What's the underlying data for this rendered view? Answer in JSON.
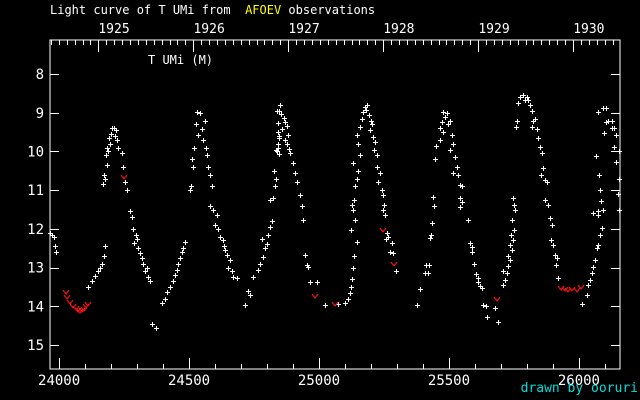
{
  "title": {
    "prefix": "Light curve of T UMi from  ",
    "highlight": "AFOEV",
    "suffix": " observations"
  },
  "series_label": "T UMi (M)",
  "credit": "drawn by ooruri",
  "colors": {
    "background": "#000000",
    "foreground": "#ffffff",
    "highlight": "#ffff00",
    "credit": "#00dede",
    "upper_limit": "#ee1111"
  },
  "chart_data": {
    "type": "scatter",
    "title": "Light curve of T UMi from AFOEV observations",
    "marker": "plus",
    "upper_limit_marker": "v",
    "grid": false,
    "x_axis": {
      "range": [
        23965,
        26158
      ],
      "major_ticks": [
        24000,
        24500,
        25000,
        25500,
        26000
      ],
      "minor_tick_step": 100
    },
    "top_axis": {
      "ticks": [
        {
          "label": "1925",
          "jd": 24151
        },
        {
          "label": "1926",
          "jd": 24517
        },
        {
          "label": "1927",
          "jd": 24882
        },
        {
          "label": "1928",
          "jd": 25247
        },
        {
          "label": "1929",
          "jd": 25613
        },
        {
          "label": "1930",
          "jd": 25978
        }
      ],
      "minor_tick_step": 30.44
    },
    "y_axis": {
      "top": 7.12,
      "bottom": 15.62,
      "inverted": true,
      "major_ticks": [
        8,
        9,
        10,
        11,
        12,
        13,
        14,
        15
      ]
    },
    "points": [
      [
        23965,
        12.1
      ],
      [
        23973,
        12.17
      ],
      [
        23981,
        12.2
      ],
      [
        23985,
        12.45
      ],
      [
        23989,
        12.6
      ],
      [
        24112,
        13.5
      ],
      [
        24127,
        13.35
      ],
      [
        24139,
        13.22
      ],
      [
        24150,
        13.1
      ],
      [
        24158,
        13.0
      ],
      [
        24165,
        12.9
      ],
      [
        24173,
        12.7
      ],
      [
        24177,
        12.45
      ],
      [
        24169,
        10.85
      ],
      [
        24177,
        10.7
      ],
      [
        24173,
        10.6
      ],
      [
        24185,
        10.35
      ],
      [
        24181,
        10.1
      ],
      [
        24189,
        10.0
      ],
      [
        24185,
        9.9
      ],
      [
        24196,
        9.8
      ],
      [
        24192,
        9.66
      ],
      [
        24200,
        9.55
      ],
      [
        24204,
        9.4
      ],
      [
        24212,
        9.4
      ],
      [
        24220,
        9.45
      ],
      [
        24216,
        9.6
      ],
      [
        24224,
        9.7
      ],
      [
        24228,
        9.9
      ],
      [
        24242,
        10.05
      ],
      [
        24246,
        10.4
      ],
      [
        24254,
        10.8
      ],
      [
        24262,
        11.0
      ],
      [
        24273,
        11.55
      ],
      [
        24281,
        11.7
      ],
      [
        24285,
        12.0
      ],
      [
        24296,
        12.15
      ],
      [
        24300,
        12.25
      ],
      [
        24289,
        12.37
      ],
      [
        24304,
        12.5
      ],
      [
        24312,
        12.63
      ],
      [
        24319,
        12.76
      ],
      [
        24323,
        12.9
      ],
      [
        24339,
        13.0
      ],
      [
        24331,
        13.1
      ],
      [
        24342,
        13.25
      ],
      [
        24350,
        13.35
      ],
      [
        24358,
        14.45
      ],
      [
        24373,
        14.55
      ],
      [
        24396,
        13.92
      ],
      [
        24408,
        13.8
      ],
      [
        24415,
        13.62
      ],
      [
        24427,
        13.5
      ],
      [
        24438,
        13.35
      ],
      [
        24446,
        13.2
      ],
      [
        24454,
        13.06
      ],
      [
        24458,
        12.9
      ],
      [
        24465,
        12.75
      ],
      [
        24473,
        12.6
      ],
      [
        24477,
        12.5
      ],
      [
        24485,
        12.35
      ],
      [
        24504,
        11.0
      ],
      [
        24508,
        10.9
      ],
      [
        24515,
        10.4
      ],
      [
        24512,
        10.2
      ],
      [
        24519,
        9.9
      ],
      [
        24531,
        8.97
      ],
      [
        24542,
        9.0
      ],
      [
        24562,
        9.2
      ],
      [
        24527,
        9.3
      ],
      [
        24550,
        9.43
      ],
      [
        24535,
        9.58
      ],
      [
        24554,
        9.7
      ],
      [
        24565,
        9.9
      ],
      [
        24569,
        10.1
      ],
      [
        24573,
        10.4
      ],
      [
        24581,
        10.6
      ],
      [
        24588,
        10.9
      ],
      [
        24581,
        11.4
      ],
      [
        24592,
        11.5
      ],
      [
        24608,
        11.65
      ],
      [
        24600,
        11.9
      ],
      [
        24612,
        12.0
      ],
      [
        24619,
        12.2
      ],
      [
        24631,
        12.3
      ],
      [
        24635,
        12.44
      ],
      [
        24638,
        12.55
      ],
      [
        24646,
        12.68
      ],
      [
        24658,
        12.8
      ],
      [
        24650,
        13.0
      ],
      [
        24665,
        13.1
      ],
      [
        24669,
        13.24
      ],
      [
        24685,
        13.28
      ],
      [
        24715,
        13.97
      ],
      [
        24727,
        13.6
      ],
      [
        24735,
        13.7
      ],
      [
        24746,
        13.24
      ],
      [
        24765,
        13.06
      ],
      [
        24773,
        12.9
      ],
      [
        24785,
        12.72
      ],
      [
        24792,
        12.5
      ],
      [
        24800,
        12.4
      ],
      [
        24781,
        12.25
      ],
      [
        24804,
        12.16
      ],
      [
        24812,
        11.95
      ],
      [
        24819,
        11.8
      ],
      [
        24812,
        11.25
      ],
      [
        24823,
        11.2
      ],
      [
        24831,
        10.9
      ],
      [
        24835,
        10.7
      ],
      [
        24827,
        10.5
      ],
      [
        24835,
        9.96
      ],
      [
        24842,
        9.8
      ],
      [
        24846,
        9.66
      ],
      [
        24850,
        8.8
      ],
      [
        24838,
        8.95
      ],
      [
        24846,
        8.95
      ],
      [
        24854,
        9.03
      ],
      [
        24865,
        9.14
      ],
      [
        24869,
        9.23
      ],
      [
        24842,
        9.27
      ],
      [
        24877,
        9.34
      ],
      [
        24858,
        9.43
      ],
      [
        24842,
        9.5
      ],
      [
        24881,
        9.58
      ],
      [
        24846,
        9.6
      ],
      [
        24869,
        9.7
      ],
      [
        24877,
        9.8
      ],
      [
        24842,
        9.9
      ],
      [
        24838,
        10.0
      ],
      [
        24846,
        10.07
      ],
      [
        24885,
        9.94
      ],
      [
        24888,
        10.04
      ],
      [
        24900,
        10.3
      ],
      [
        24908,
        10.56
      ],
      [
        24915,
        10.8
      ],
      [
        24927,
        11.13
      ],
      [
        24935,
        11.4
      ],
      [
        24938,
        11.77
      ],
      [
        24946,
        12.68
      ],
      [
        24954,
        12.94
      ],
      [
        24958,
        12.98
      ],
      [
        24965,
        13.37
      ],
      [
        24992,
        13.37
      ],
      [
        25023,
        13.97
      ],
      [
        25073,
        13.94
      ],
      [
        25100,
        13.92
      ],
      [
        25112,
        13.8
      ],
      [
        25119,
        13.66
      ],
      [
        25123,
        13.5
      ],
      [
        25127,
        13.3
      ],
      [
        25131,
        13.0
      ],
      [
        25135,
        12.7
      ],
      [
        25146,
        12.34
      ],
      [
        25123,
        12.03
      ],
      [
        25131,
        11.5
      ],
      [
        25127,
        11.38
      ],
      [
        25139,
        11.77
      ],
      [
        25135,
        11.25
      ],
      [
        25139,
        10.9
      ],
      [
        25146,
        10.7
      ],
      [
        25150,
        10.5
      ],
      [
        25131,
        10.3
      ],
      [
        25158,
        10.1
      ],
      [
        25150,
        9.8
      ],
      [
        25146,
        9.57
      ],
      [
        25158,
        9.36
      ],
      [
        25165,
        9.17
      ],
      [
        25169,
        8.97
      ],
      [
        25177,
        8.85
      ],
      [
        25181,
        8.93
      ],
      [
        25185,
        8.8
      ],
      [
        25192,
        9.06
      ],
      [
        25200,
        9.2
      ],
      [
        25204,
        9.3
      ],
      [
        25196,
        9.45
      ],
      [
        25208,
        9.62
      ],
      [
        25215,
        9.75
      ],
      [
        25212,
        9.96
      ],
      [
        25223,
        10.1
      ],
      [
        25223,
        10.4
      ],
      [
        25235,
        10.56
      ],
      [
        25227,
        10.79
      ],
      [
        25242,
        11.0
      ],
      [
        25246,
        11.13
      ],
      [
        25250,
        11.38
      ],
      [
        25246,
        11.5
      ],
      [
        25254,
        11.64
      ],
      [
        25261,
        12.1
      ],
      [
        25265,
        12.2
      ],
      [
        25258,
        12.26
      ],
      [
        25281,
        12.37
      ],
      [
        25273,
        12.6
      ],
      [
        25285,
        12.63
      ],
      [
        25296,
        13.08
      ],
      [
        25377,
        13.97
      ],
      [
        25388,
        13.56
      ],
      [
        25408,
        13.14
      ],
      [
        25419,
        13.15
      ],
      [
        25412,
        12.93
      ],
      [
        25423,
        12.94
      ],
      [
        25427,
        12.24
      ],
      [
        25431,
        12.16
      ],
      [
        25435,
        11.85
      ],
      [
        25442,
        11.4
      ],
      [
        25439,
        11.18
      ],
      [
        25446,
        10.2
      ],
      [
        25450,
        9.85
      ],
      [
        25477,
        8.98
      ],
      [
        25492,
        9.0
      ],
      [
        25485,
        9.1
      ],
      [
        25504,
        9.2
      ],
      [
        25473,
        9.23
      ],
      [
        25496,
        9.3
      ],
      [
        25465,
        9.4
      ],
      [
        25477,
        9.5
      ],
      [
        25512,
        9.58
      ],
      [
        25465,
        9.7
      ],
      [
        25515,
        9.8
      ],
      [
        25504,
        9.96
      ],
      [
        25523,
        10.15
      ],
      [
        25531,
        10.4
      ],
      [
        25515,
        10.56
      ],
      [
        25535,
        10.6
      ],
      [
        25542,
        10.87
      ],
      [
        25550,
        10.9
      ],
      [
        25542,
        11.2
      ],
      [
        25550,
        11.3
      ],
      [
        25542,
        11.44
      ],
      [
        25573,
        11.77
      ],
      [
        25581,
        12.37
      ],
      [
        25588,
        12.47
      ],
      [
        25588,
        12.6
      ],
      [
        25596,
        12.9
      ],
      [
        25604,
        13.17
      ],
      [
        25611,
        13.28
      ],
      [
        25611,
        13.38
      ],
      [
        25619,
        13.48
      ],
      [
        25627,
        13.53
      ],
      [
        25631,
        13.97
      ],
      [
        25642,
        14.0
      ],
      [
        25646,
        14.28
      ],
      [
        25677,
        14.05
      ],
      [
        25688,
        14.4
      ],
      [
        25708,
        13.45
      ],
      [
        25715,
        13.32
      ],
      [
        25723,
        13.14
      ],
      [
        25708,
        13.1
      ],
      [
        25727,
        12.96
      ],
      [
        25735,
        12.8
      ],
      [
        25727,
        12.7
      ],
      [
        25742,
        12.55
      ],
      [
        25735,
        12.42
      ],
      [
        25746,
        12.3
      ],
      [
        25738,
        12.16
      ],
      [
        25750,
        12.03
      ],
      [
        25742,
        11.77
      ],
      [
        25754,
        11.5
      ],
      [
        25750,
        11.38
      ],
      [
        25746,
        11.2
      ],
      [
        25765,
        8.76
      ],
      [
        25773,
        8.6
      ],
      [
        25785,
        8.55
      ],
      [
        25792,
        8.66
      ],
      [
        25800,
        8.6
      ],
      [
        25804,
        8.68
      ],
      [
        25812,
        8.8
      ],
      [
        25819,
        8.95
      ],
      [
        25762,
        9.2
      ],
      [
        25823,
        9.2
      ],
      [
        25831,
        9.17
      ],
      [
        25819,
        9.36
      ],
      [
        25838,
        9.43
      ],
      [
        25842,
        9.66
      ],
      [
        25758,
        9.36
      ],
      [
        25850,
        9.89
      ],
      [
        25858,
        10.04
      ],
      [
        25862,
        10.43
      ],
      [
        25854,
        10.6
      ],
      [
        25869,
        10.74
      ],
      [
        25877,
        10.8
      ],
      [
        25869,
        11.25
      ],
      [
        25881,
        11.38
      ],
      [
        25888,
        11.72
      ],
      [
        25896,
        11.9
      ],
      [
        25892,
        12.3
      ],
      [
        25900,
        12.42
      ],
      [
        25908,
        12.68
      ],
      [
        25915,
        12.75
      ],
      [
        25912,
        12.94
      ],
      [
        25919,
        13.27
      ],
      [
        26012,
        13.94
      ],
      [
        26031,
        13.7
      ],
      [
        26035,
        13.45
      ],
      [
        26042,
        13.32
      ],
      [
        26050,
        13.14
      ],
      [
        26054,
        12.98
      ],
      [
        26062,
        12.8
      ],
      [
        26069,
        12.5
      ],
      [
        26073,
        12.42
      ],
      [
        26081,
        12.16
      ],
      [
        26088,
        11.97
      ],
      [
        26073,
        11.64
      ],
      [
        26092,
        11.5
      ],
      [
        26085,
        11.27
      ],
      [
        26054,
        11.6
      ],
      [
        26073,
        11.55
      ],
      [
        26081,
        11.0
      ],
      [
        26077,
        10.6
      ],
      [
        26065,
        10.12
      ],
      [
        26096,
        9.52
      ],
      [
        26073,
        8.97
      ],
      [
        26092,
        8.88
      ],
      [
        26104,
        8.88
      ],
      [
        26112,
        9.2
      ],
      [
        26127,
        9.2
      ],
      [
        26104,
        9.23
      ],
      [
        26127,
        9.4
      ],
      [
        26135,
        9.4
      ],
      [
        26142,
        9.58
      ],
      [
        26135,
        9.89
      ],
      [
        26142,
        10.27
      ],
      [
        26154,
        10.0
      ],
      [
        26154,
        10.7
      ],
      [
        26150,
        11.1
      ],
      [
        26154,
        11.5
      ]
    ],
    "upper_limits": [
      [
        24027,
        13.62
      ],
      [
        24031,
        13.75
      ],
      [
        24042,
        13.9
      ],
      [
        24054,
        14.0
      ],
      [
        24065,
        14.05
      ],
      [
        24073,
        14.1
      ],
      [
        24081,
        14.12
      ],
      [
        24088,
        14.1
      ],
      [
        24096,
        14.08
      ],
      [
        24104,
        14.0
      ],
      [
        24112,
        13.95
      ],
      [
        24250,
        10.66
      ],
      [
        24985,
        13.74
      ],
      [
        25062,
        13.95
      ],
      [
        25246,
        12.03
      ],
      [
        25288,
        12.9
      ],
      [
        25685,
        13.81
      ],
      [
        25931,
        13.52
      ],
      [
        25946,
        13.55
      ],
      [
        25958,
        13.58
      ],
      [
        25973,
        13.55
      ],
      [
        25992,
        13.57
      ],
      [
        26008,
        13.5
      ]
    ]
  }
}
